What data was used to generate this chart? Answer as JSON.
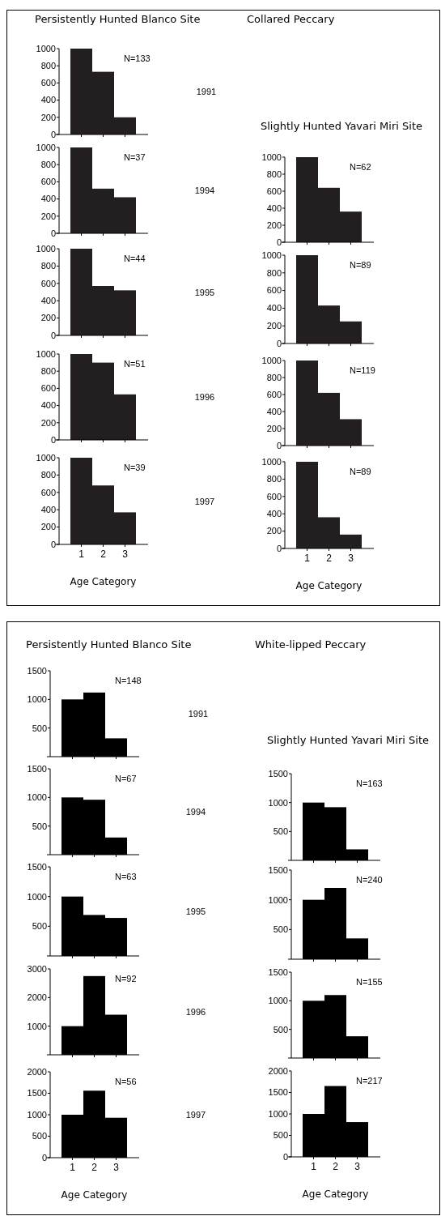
{
  "chart_data": [
    {
      "type": "bar",
      "title": "Persistently Hunted Blanco Site",
      "categories": [
        "1",
        "2",
        "3"
      ],
      "values": [
        1000,
        730,
        200
      ],
      "color": "#231f20",
      "ylim": [
        0,
        1000
      ],
      "yticks": [
        0,
        200,
        400,
        600,
        800,
        1000
      ],
      "tick_labels": "y",
      "annotations": [
        "N=133",
        "1991"
      ]
    },
    {
      "type": "bar",
      "categories": [
        "1",
        "2",
        "3"
      ],
      "values": [
        1000,
        520,
        420
      ],
      "color": "#231f20",
      "ylim": [
        0,
        1000
      ],
      "yticks": [
        0,
        200,
        400,
        600,
        800,
        1000
      ],
      "tick_labels": "y",
      "annotations": [
        "N=37",
        "1994"
      ]
    },
    {
      "type": "bar",
      "categories": [
        "1",
        "2",
        "3"
      ],
      "values": [
        1000,
        570,
        520
      ],
      "color": "#231f20",
      "ylim": [
        0,
        1000
      ],
      "yticks": [
        0,
        200,
        400,
        600,
        800,
        1000
      ],
      "tick_labels": "y",
      "annotations": [
        "N=44",
        "1995"
      ]
    },
    {
      "type": "bar",
      "categories": [
        "1",
        "2",
        "3"
      ],
      "values": [
        1000,
        900,
        530
      ],
      "color": "#231f20",
      "ylim": [
        0,
        1000
      ],
      "yticks": [
        0,
        200,
        400,
        600,
        800,
        1000
      ],
      "tick_labels": "y",
      "annotations": [
        "N=51",
        "1996"
      ]
    },
    {
      "type": "bar",
      "xlabel": "Age Category",
      "categories": [
        "1",
        "2",
        "3"
      ],
      "values": [
        1000,
        680,
        370
      ],
      "color": "#231f20",
      "ylim": [
        0,
        1000
      ],
      "yticks": [
        0,
        200,
        400,
        600,
        800,
        1000
      ],
      "annotations": [
        "N=39",
        "1997"
      ]
    },
    {
      "type": "bar",
      "title": "Slightly Hunted Yavari Miri Site",
      "subtitle": "Collared Peccary",
      "categories": [
        "1",
        "2",
        "3"
      ],
      "values": [
        1000,
        640,
        360
      ],
      "color": "#231f20",
      "ylim": [
        0,
        1000
      ],
      "yticks": [
        0,
        200,
        400,
        600,
        800,
        1000
      ],
      "tick_labels": "y",
      "annotations": [
        "N=62"
      ]
    },
    {
      "type": "bar",
      "categories": [
        "1",
        "2",
        "3"
      ],
      "values": [
        1000,
        430,
        250
      ],
      "color": "#231f20",
      "ylim": [
        0,
        1000
      ],
      "yticks": [
        0,
        200,
        400,
        600,
        800,
        1000
      ],
      "tick_labels": "y",
      "annotations": [
        "N=89"
      ]
    },
    {
      "type": "bar",
      "categories": [
        "1",
        "2",
        "3"
      ],
      "values": [
        1000,
        620,
        310
      ],
      "color": "#231f20",
      "ylim": [
        0,
        1000
      ],
      "yticks": [
        0,
        200,
        400,
        600,
        800,
        1000
      ],
      "tick_labels": "y",
      "annotations": [
        "N=119"
      ]
    },
    {
      "type": "bar",
      "xlabel": "Age Category",
      "categories": [
        "1",
        "2",
        "3"
      ],
      "values": [
        1000,
        360,
        160
      ],
      "color": "#231f20",
      "ylim": [
        0,
        1000
      ],
      "yticks": [
        0,
        200,
        400,
        600,
        800,
        1000
      ],
      "annotations": [
        "N=89"
      ]
    },
    {
      "type": "bar",
      "title": "Persistently Hunted Blanco Site",
      "categories": [
        "1",
        "2",
        "3"
      ],
      "values": [
        1000,
        1120,
        320
      ],
      "color": "#000000",
      "ylim": [
        0,
        1500
      ],
      "yticks": [
        500,
        1000,
        1500
      ],
      "tick_labels": "y",
      "annotations": [
        "N=148",
        "1991"
      ]
    },
    {
      "type": "bar",
      "categories": [
        "1",
        "2",
        "3"
      ],
      "values": [
        1000,
        960,
        300
      ],
      "color": "#000000",
      "ylim": [
        0,
        1500
      ],
      "yticks": [
        500,
        1000,
        1500
      ],
      "tick_labels": "y",
      "annotations": [
        "N=67",
        "1994"
      ]
    },
    {
      "type": "bar",
      "categories": [
        "1",
        "2",
        "3"
      ],
      "values": [
        1000,
        690,
        640
      ],
      "color": "#000000",
      "ylim": [
        0,
        1500
      ],
      "yticks": [
        500,
        1000,
        1500
      ],
      "tick_labels": "y",
      "annotations": [
        "N=63",
        "1995"
      ]
    },
    {
      "type": "bar",
      "categories": [
        "1",
        "2",
        "3"
      ],
      "values": [
        1000,
        2750,
        1400
      ],
      "color": "#000000",
      "ylim": [
        0,
        3000
      ],
      "yticks": [
        1000,
        2000,
        3000
      ],
      "tick_labels": "y",
      "annotations": [
        "N=92",
        "1996"
      ]
    },
    {
      "type": "bar",
      "xlabel": "Age Category",
      "categories": [
        "1",
        "2",
        "3"
      ],
      "values": [
        1000,
        1560,
        930
      ],
      "color": "#000000",
      "ylim": [
        0,
        2000
      ],
      "yticks": [
        0,
        500,
        1000,
        1500,
        2000
      ],
      "annotations": [
        "N=56",
        "1997"
      ]
    },
    {
      "type": "bar",
      "title": "Slightly Hunted Yavari Miri Site",
      "subtitle": "White-lipped Peccary",
      "categories": [
        "1",
        "2",
        "3"
      ],
      "values": [
        1000,
        920,
        190
      ],
      "color": "#000000",
      "ylim": [
        0,
        1500
      ],
      "yticks": [
        500,
        1000,
        1500
      ],
      "tick_labels": "y",
      "annotations": [
        "N=163"
      ]
    },
    {
      "type": "bar",
      "categories": [
        "1",
        "2",
        "3"
      ],
      "values": [
        1000,
        1200,
        350
      ],
      "color": "#000000",
      "ylim": [
        0,
        1500
      ],
      "yticks": [
        500,
        1000,
        1500
      ],
      "tick_labels": "y",
      "annotations": [
        "N=240"
      ]
    },
    {
      "type": "bar",
      "categories": [
        "1",
        "2",
        "3"
      ],
      "values": [
        1000,
        1100,
        380
      ],
      "color": "#000000",
      "ylim": [
        0,
        1500
      ],
      "yticks": [
        500,
        1000,
        1500
      ],
      "tick_labels": "y",
      "annotations": [
        "N=155"
      ]
    },
    {
      "type": "bar",
      "xlabel": "Age Category",
      "categories": [
        "1",
        "2",
        "3"
      ],
      "values": [
        1000,
        1650,
        810
      ],
      "color": "#000000",
      "ylim": [
        0,
        2000
      ],
      "yticks": [
        0,
        500,
        1000,
        1500,
        2000
      ],
      "annotations": [
        "N=217"
      ]
    }
  ]
}
